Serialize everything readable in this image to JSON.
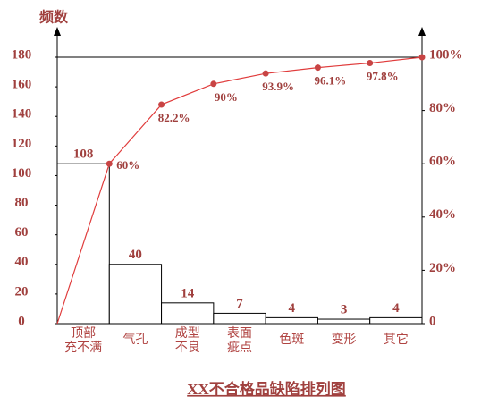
{
  "chart_data": {
    "type": "pareto",
    "title": "XX不合格品缺陷排列图",
    "y_label": "频数",
    "categories": [
      [
        "顶部",
        "充不满"
      ],
      [
        "气孔"
      ],
      [
        "成型",
        "不良"
      ],
      [
        "表面",
        "疵点"
      ],
      [
        "色斑"
      ],
      [
        "变形"
      ],
      [
        "其它"
      ]
    ],
    "values": [
      108,
      40,
      14,
      7,
      4,
      3,
      4
    ],
    "color": "#ffffff",
    "cumulative": {
      "values": [
        60,
        82.2,
        90,
        93.9,
        96.1,
        97.8,
        100
      ],
      "value_labels": [
        "60%",
        "82.2%",
        "90%",
        "93.9%",
        "96.1%",
        "97.8%",
        null
      ],
      "color": "#e03c3c"
    },
    "ylim": [
      0,
      180
    ],
    "yticks": [
      0,
      20,
      40,
      60,
      80,
      100,
      120,
      140,
      160,
      180
    ],
    "y2lim": [
      0,
      100
    ],
    "y2ticks": [
      0,
      {
        "value": 20,
        "label": "20%"
      },
      {
        "value": 40,
        "label": "40%"
      },
      {
        "value": 60,
        "label": "60%"
      },
      {
        "value": 80,
        "label": "80%"
      },
      {
        "value": 100,
        "label": "100%"
      }
    ]
  }
}
